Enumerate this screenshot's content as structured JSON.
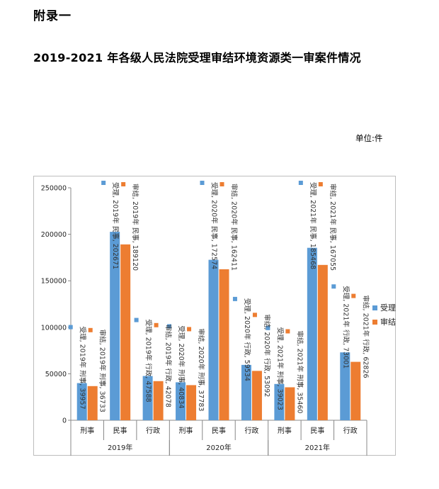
{
  "page": {
    "appendix": "附录一",
    "title": "2019-2021 年各级人民法院受理审结环境资源类一审案件情况",
    "unit": "单位:件"
  },
  "chart_data": {
    "type": "bar",
    "ylim": [
      0,
      250000
    ],
    "yticks": [
      0,
      50000,
      100000,
      150000,
      200000,
      250000
    ],
    "groups": [
      {
        "year": "2019年",
        "categories": [
          "刑事",
          "民事",
          "行政"
        ]
      },
      {
        "year": "2020年",
        "categories": [
          "刑事",
          "民事",
          "行政"
        ]
      },
      {
        "year": "2021年",
        "categories": [
          "刑事",
          "民事",
          "行政"
        ]
      }
    ],
    "series": [
      {
        "name": "受理",
        "color": "#5b9bd5",
        "values": [
          39957,
          202671,
          47588,
          40834,
          172574,
          59534,
          39023,
          185468,
          73001
        ],
        "labels": [
          "受理, 2019年 刑事, 39957",
          "受理, 2019年 民事, 202671",
          "受理, 2019年 行政, 47588",
          "受理, 2020年 刑事, 40834",
          "受理, 2020年 民事, 172574",
          "受理, 2020年 行政, 59534",
          "受理, 2021年 刑事, 39023",
          "受理, 2021年 民事, 185468",
          "受理, 2021年 行政, 73001"
        ]
      },
      {
        "name": "审结",
        "color": "#ed7d31",
        "values": [
          36733,
          189120,
          42078,
          37783,
          162411,
          53092,
          35460,
          167055,
          62826
        ],
        "labels": [
          "审结, 2019年 刑事, 36733",
          "审结, 2019年 民事, 189120",
          "审结, 2019年 行政, 42078",
          "审结, 2020年 刑事, 37783",
          "审结, 2020年 民事, 162411",
          "审结, 2020年 行政, 53092",
          "审结, 2021年 刑事, 35460",
          "审结, 2021年 民事, 167055",
          "审结, 2021年 行政, 62826"
        ]
      }
    ],
    "legend": "right",
    "grid": false
  }
}
